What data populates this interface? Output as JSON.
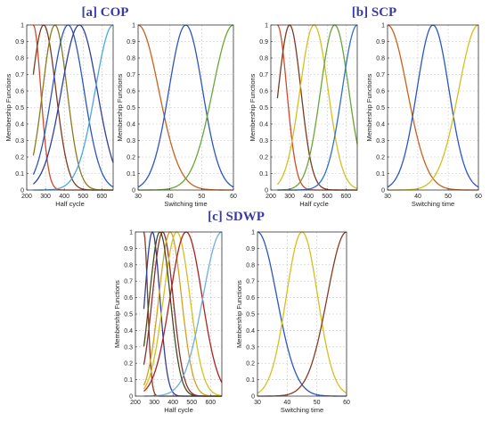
{
  "panel_titles": [
    "[a] COP",
    "[b] SCP",
    "[c] SDWP"
  ],
  "chart_data": [
    {
      "type": "line",
      "title": "",
      "xlabel": "Half cycle",
      "ylabel": "Membership Functions",
      "xlim": [
        200,
        660
      ],
      "ylim": [
        0,
        1
      ],
      "xticks": [
        200,
        300,
        400,
        500,
        600
      ],
      "yticks": [
        0,
        0.1,
        0.2,
        0.3,
        0.4,
        0.5,
        0.6,
        0.7,
        0.8,
        0.9,
        1
      ],
      "grid": true,
      "x_range": [
        235,
        660
      ],
      "series": [
        {
          "color": "#d24a2b",
          "mu": 235,
          "sigma": 40
        },
        {
          "color": "#7a3b1f",
          "mu": 290,
          "sigma": 65
        },
        {
          "color": "#8a7a20",
          "mu": 350,
          "sigma": 65
        },
        {
          "color": "#2b56c0",
          "mu": 420,
          "sigma": 85
        },
        {
          "color": "#2f3f9c",
          "mu": 480,
          "sigma": 95
        },
        {
          "color": "#4aa8dc",
          "mu": 660,
          "sigma": 95
        }
      ]
    },
    {
      "type": "line",
      "title": "",
      "xlabel": "Switching time",
      "ylabel": "Membership Functions",
      "xlim": [
        30,
        60
      ],
      "ylim": [
        0,
        1
      ],
      "xticks": [
        30,
        40,
        50,
        60
      ],
      "yticks": [
        0,
        0.1,
        0.2,
        0.3,
        0.4,
        0.5,
        0.6,
        0.7,
        0.8,
        0.9,
        1
      ],
      "grid": true,
      "x_range": [
        30,
        60
      ],
      "series": [
        {
          "color": "#c8621d",
          "mu": 30,
          "sigma": 6.5
        },
        {
          "color": "#2b56c0",
          "mu": 45,
          "sigma": 5.3
        },
        {
          "color": "#6aa637",
          "mu": 60,
          "sigma": 6.5
        }
      ]
    },
    {
      "type": "line",
      "title": "",
      "xlabel": "Half cycle",
      "ylabel": "Membership Functions",
      "xlim": [
        200,
        660
      ],
      "ylim": [
        0,
        1
      ],
      "xticks": [
        200,
        300,
        400,
        500,
        600
      ],
      "yticks": [
        0,
        0.1,
        0.2,
        0.3,
        0.4,
        0.5,
        0.6,
        0.7,
        0.8,
        0.9,
        1
      ],
      "grid": true,
      "x_range": [
        235,
        660
      ],
      "series": [
        {
          "color": "#d24a2b",
          "mu": 235,
          "sigma": 50
        },
        {
          "color": "#7a3b1f",
          "mu": 300,
          "sigma": 60
        },
        {
          "color": "#d4c01e",
          "mu": 430,
          "sigma": 75
        },
        {
          "color": "#6aa637",
          "mu": 540,
          "sigma": 75
        },
        {
          "color": "#2f6fcf",
          "mu": 660,
          "sigma": 80
        }
      ]
    },
    {
      "type": "line",
      "title": "",
      "xlabel": "Switching time",
      "ylabel": "Membership Functions",
      "xlim": [
        30,
        60
      ],
      "ylim": [
        0,
        1
      ],
      "xticks": [
        30,
        40,
        50,
        60
      ],
      "yticks": [
        0,
        0.1,
        0.2,
        0.3,
        0.4,
        0.5,
        0.6,
        0.7,
        0.8,
        0.9,
        1
      ],
      "grid": true,
      "x_range": [
        30,
        60
      ],
      "series": [
        {
          "color": "#c8621d",
          "mu": 30,
          "sigma": 6.5
        },
        {
          "color": "#2b56c0",
          "mu": 45,
          "sigma": 5.3
        },
        {
          "color": "#d4c01e",
          "mu": 60,
          "sigma": 6.5
        }
      ]
    },
    {
      "type": "line",
      "title": "",
      "xlabel": "Half cycle",
      "ylabel": "Membership Functions",
      "xlim": [
        200,
        660
      ],
      "ylim": [
        0,
        1
      ],
      "xticks": [
        200,
        300,
        400,
        500,
        600
      ],
      "yticks": [
        0,
        0.1,
        0.2,
        0.3,
        0.4,
        0.5,
        0.6,
        0.7,
        0.8,
        0.9,
        1
      ],
      "grid": true,
      "x_range": [
        245,
        660
      ],
      "series": [
        {
          "color": "#8a3b22",
          "mu": 245,
          "sigma": 20
        },
        {
          "color": "#2f3f9c",
          "mu": 290,
          "sigma": 40
        },
        {
          "color": "#8a2f2f",
          "mu": 345,
          "sigma": 55
        },
        {
          "color": "#d4a020",
          "mu": 385,
          "sigma": 60
        },
        {
          "color": "#d4c01e",
          "mu": 420,
          "sigma": 70
        },
        {
          "color": "#b02020",
          "mu": 470,
          "sigma": 85
        },
        {
          "color": "#6ab0e0",
          "mu": 660,
          "sigma": 100
        },
        {
          "color": "#4a4a20",
          "mu": 330,
          "sigma": 55
        }
      ]
    },
    {
      "type": "line",
      "title": "",
      "xlabel": "Switching time",
      "ylabel": "Membership Functions",
      "xlim": [
        30,
        60
      ],
      "ylim": [
        0,
        1
      ],
      "xticks": [
        30,
        40,
        50,
        60
      ],
      "yticks": [
        0,
        0.1,
        0.2,
        0.3,
        0.4,
        0.5,
        0.6,
        0.7,
        0.8,
        0.9,
        1
      ],
      "grid": true,
      "x_range": [
        30,
        60
      ],
      "series": [
        {
          "color": "#2b56c0",
          "mu": 30,
          "sigma": 6.5
        },
        {
          "color": "#d4c01e",
          "mu": 45,
          "sigma": 5.3
        },
        {
          "color": "#8a3b22",
          "mu": 60,
          "sigma": 6.5
        }
      ]
    }
  ]
}
